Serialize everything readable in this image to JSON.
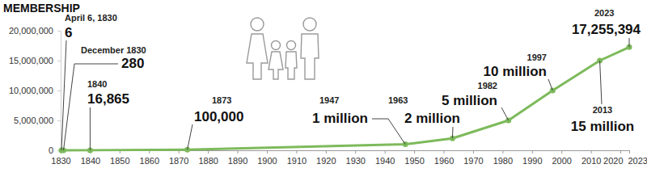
{
  "chart_data": {
    "type": "line",
    "title": "MEMBERSHIP",
    "x": [
      1830.26,
      1830.96,
      1840,
      1873,
      1947,
      1963,
      1982,
      1997,
      2013,
      2023
    ],
    "date_labels": [
      "April 6, 1830",
      "December 1830",
      "1840",
      "1873",
      "1947",
      "1963",
      "1982",
      "1997",
      "2013",
      "2023"
    ],
    "values": [
      6,
      280,
      16865,
      100000,
      1000000,
      2000000,
      5000000,
      10000000,
      15000000,
      17255394
    ],
    "value_labels": [
      "6",
      "280",
      "16,865",
      "100,000",
      "1 million",
      "2 million",
      "5 million",
      "10 million",
      "15 million",
      "17,255,394"
    ],
    "data_labels": true,
    "color": "#7dba5b",
    "marker": "circle",
    "xlim": [
      1830,
      2023
    ],
    "xticks": [
      1830,
      1840,
      1850,
      1860,
      1870,
      1880,
      1890,
      1900,
      1910,
      1920,
      1930,
      1940,
      1950,
      1960,
      1970,
      1980,
      1990,
      2000,
      2010,
      2020,
      2023
    ],
    "ylim": [
      0,
      20000000
    ],
    "yticks": [
      0,
      {
        "value": 5000000,
        "label": "5,000,000"
      },
      {
        "value": 10000000,
        "label": "10,000,000"
      },
      {
        "value": 15000000,
        "label": "15,000,000"
      },
      {
        "value": 20000000,
        "label": "20,000,000"
      }
    ],
    "grid": false
  }
}
